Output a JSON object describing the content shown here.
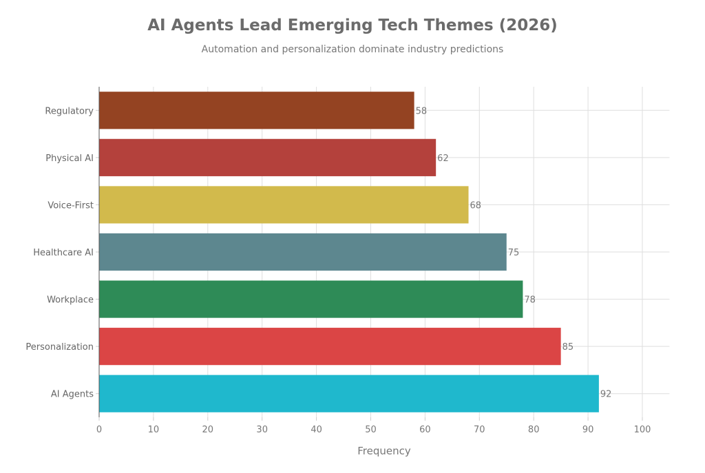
{
  "chart_data": {
    "type": "bar",
    "orientation": "horizontal",
    "title": "AI Agents Lead Emerging Tech Themes (2026)",
    "subtitle": "Automation and personalization dominate industry predictions",
    "xlabel": "Frequency",
    "ylabel": "",
    "xlim": [
      0,
      105
    ],
    "xticks": [
      0,
      10,
      20,
      30,
      40,
      50,
      60,
      70,
      80,
      90,
      100
    ],
    "grid": true,
    "categories": [
      "AI Agents",
      "Personalization",
      "Workplace",
      "Healthcare AI",
      "Voice-First",
      "Physical AI",
      "Regulatory"
    ],
    "values": [
      92,
      85,
      78,
      75,
      68,
      62,
      58
    ],
    "colors": [
      "#1FB8CD",
      "#DB4545",
      "#2E8B57",
      "#5D878F",
      "#D2BA4C",
      "#B4413C",
      "#944322"
    ],
    "data_labels": true
  }
}
